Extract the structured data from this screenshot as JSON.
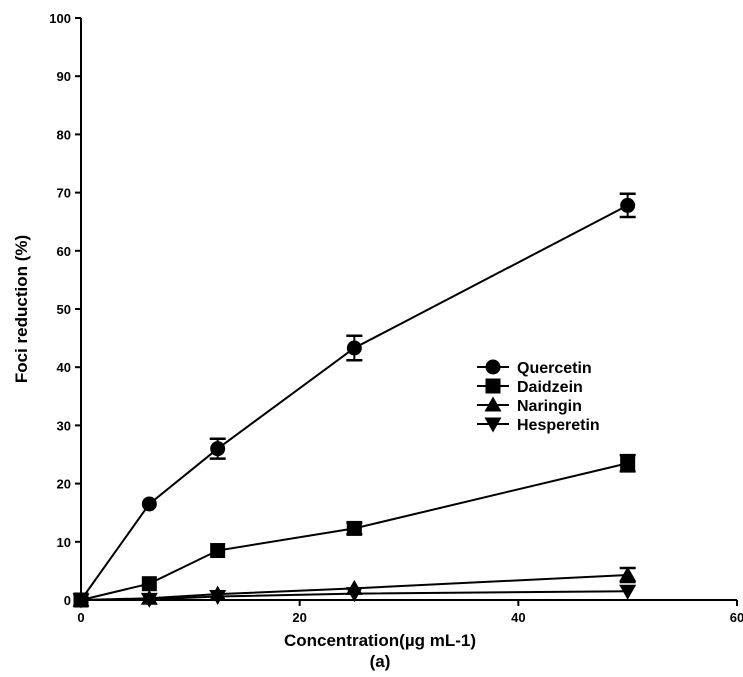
{
  "chart_data": {
    "type": "line",
    "title": "",
    "xlabel": "Concentration(µg mL-1)",
    "ylabel": "Foci reduction (%)",
    "caption": "(a)",
    "xlim": [
      0,
      60
    ],
    "ylim": [
      0,
      100
    ],
    "xticks": [
      "0",
      "20",
      "40",
      "60"
    ],
    "yticks": [
      "0",
      "10",
      "20",
      "30",
      "40",
      "50",
      "60",
      "70",
      "80",
      "90",
      "100"
    ],
    "grid": false,
    "legend_position": "right-middle",
    "series": [
      {
        "name": "Quercetin",
        "marker": "circle",
        "x": [
          0,
          6.25,
          12.5,
          25,
          50
        ],
        "y": [
          0,
          16.5,
          26,
          43.3,
          67.8
        ],
        "error": [
          0,
          0,
          1.7,
          2.1,
          2.0
        ]
      },
      {
        "name": "Daidzein",
        "marker": "square",
        "x": [
          0,
          6.25,
          12.5,
          25,
          50
        ],
        "y": [
          0,
          2.8,
          8.5,
          12.3,
          23.5
        ],
        "error": [
          0,
          0,
          0,
          1.0,
          1.4
        ]
      },
      {
        "name": "Naringin",
        "marker": "triangle-up",
        "x": [
          0,
          6.25,
          12.5,
          25,
          50
        ],
        "y": [
          0,
          0.3,
          1.0,
          2.0,
          4.3
        ],
        "error": [
          0,
          0,
          0,
          0,
          1.2
        ]
      },
      {
        "name": "Hesperetin",
        "marker": "triangle-down",
        "x": [
          0,
          6.25,
          12.5,
          25,
          50
        ],
        "y": [
          0,
          0.1,
          0.6,
          1.1,
          1.5
        ],
        "error": [
          0,
          0,
          0,
          0,
          0
        ]
      }
    ]
  }
}
